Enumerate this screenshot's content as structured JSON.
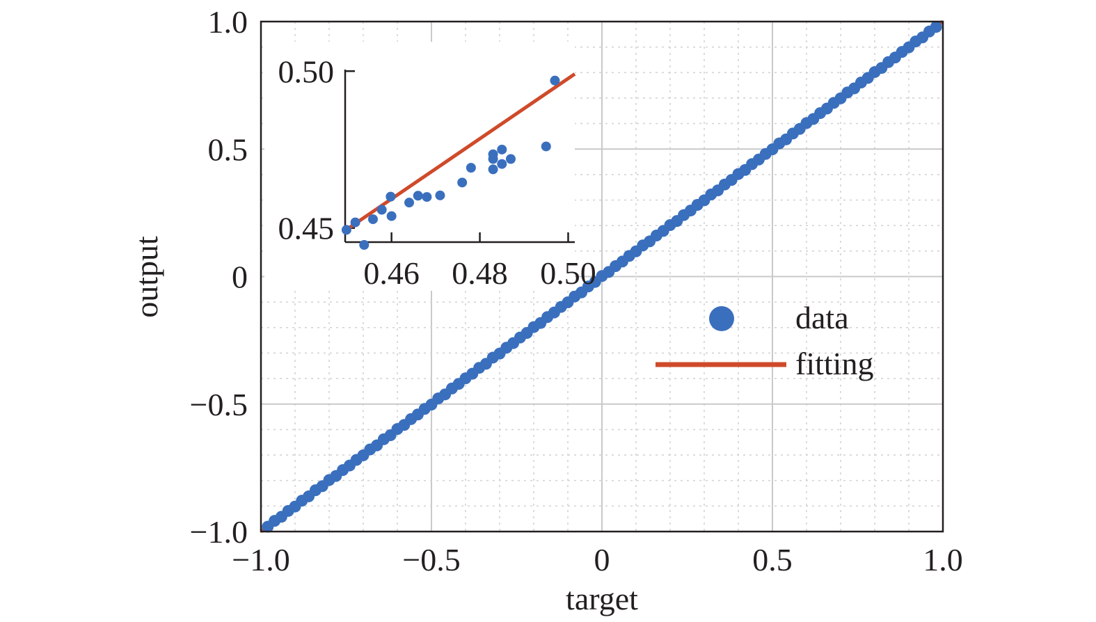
{
  "chart_data": {
    "type": "scatter",
    "xlabel": "target",
    "ylabel": "output",
    "xlim": [
      -1.0,
      1.0
    ],
    "ylim": [
      -1.0,
      1.0
    ],
    "x_ticks": [
      "−1.0",
      "−0.5",
      "0",
      "0.5",
      "1.0"
    ],
    "y_ticks": [
      "−1.0",
      "−0.5",
      "0",
      "0.5",
      "1.0"
    ],
    "grid": "major solid, minor dotted",
    "legend": {
      "placement": "right",
      "entries": [
        {
          "label": "data",
          "marker": "circle",
          "color": "#3a6fbd"
        },
        {
          "label": "fitting",
          "marker": "line",
          "color": "#cf4a2a"
        }
      ]
    },
    "series": [
      {
        "name": "data",
        "kind": "scatter",
        "color": "#3a6fbd",
        "points": [
          [
            -0.98,
            -0.981
          ],
          [
            -0.96,
            -0.958
          ],
          [
            -0.94,
            -0.942
          ],
          [
            -0.92,
            -0.919
          ],
          [
            -0.9,
            -0.902
          ],
          [
            -0.88,
            -0.879
          ],
          [
            -0.86,
            -0.862
          ],
          [
            -0.84,
            -0.838
          ],
          [
            -0.82,
            -0.822
          ],
          [
            -0.8,
            -0.798
          ],
          [
            -0.78,
            -0.782
          ],
          [
            -0.76,
            -0.759
          ],
          [
            -0.74,
            -0.741
          ],
          [
            -0.72,
            -0.719
          ],
          [
            -0.7,
            -0.701
          ],
          [
            -0.68,
            -0.678
          ],
          [
            -0.66,
            -0.662
          ],
          [
            -0.64,
            -0.638
          ],
          [
            -0.62,
            -0.622
          ],
          [
            -0.6,
            -0.598
          ],
          [
            -0.58,
            -0.582
          ],
          [
            -0.56,
            -0.559
          ],
          [
            -0.54,
            -0.541
          ],
          [
            -0.52,
            -0.519
          ],
          [
            -0.5,
            -0.502
          ],
          [
            -0.48,
            -0.478
          ],
          [
            -0.46,
            -0.462
          ],
          [
            -0.44,
            -0.439
          ],
          [
            -0.42,
            -0.421
          ],
          [
            -0.4,
            -0.399
          ],
          [
            -0.38,
            -0.381
          ],
          [
            -0.36,
            -0.358
          ],
          [
            -0.34,
            -0.342
          ],
          [
            -0.32,
            -0.318
          ],
          [
            -0.3,
            -0.302
          ],
          [
            -0.28,
            -0.279
          ],
          [
            -0.26,
            -0.261
          ],
          [
            -0.24,
            -0.239
          ],
          [
            -0.22,
            -0.221
          ],
          [
            -0.2,
            -0.198
          ],
          [
            -0.18,
            -0.182
          ],
          [
            -0.16,
            -0.159
          ],
          [
            -0.14,
            -0.141
          ],
          [
            -0.12,
            -0.119
          ],
          [
            -0.1,
            -0.101
          ],
          [
            -0.08,
            -0.078
          ],
          [
            -0.06,
            -0.062
          ],
          [
            -0.04,
            -0.039
          ],
          [
            -0.02,
            -0.021
          ],
          [
            0.0,
            0.002
          ],
          [
            0.02,
            0.018
          ],
          [
            0.04,
            0.041
          ],
          [
            0.06,
            0.059
          ],
          [
            0.08,
            0.081
          ],
          [
            0.1,
            0.099
          ],
          [
            0.12,
            0.122
          ],
          [
            0.14,
            0.138
          ],
          [
            0.16,
            0.161
          ],
          [
            0.18,
            0.179
          ],
          [
            0.2,
            0.202
          ],
          [
            0.22,
            0.218
          ],
          [
            0.24,
            0.241
          ],
          [
            0.26,
            0.259
          ],
          [
            0.28,
            0.281
          ],
          [
            0.3,
            0.299
          ],
          [
            0.32,
            0.322
          ],
          [
            0.34,
            0.338
          ],
          [
            0.36,
            0.361
          ],
          [
            0.38,
            0.379
          ],
          [
            0.4,
            0.402
          ],
          [
            0.42,
            0.418
          ],
          [
            0.44,
            0.441
          ],
          [
            0.46,
            0.459
          ],
          [
            0.48,
            0.481
          ],
          [
            0.5,
            0.499
          ],
          [
            0.52,
            0.522
          ],
          [
            0.54,
            0.538
          ],
          [
            0.56,
            0.561
          ],
          [
            0.58,
            0.579
          ],
          [
            0.6,
            0.602
          ],
          [
            0.62,
            0.618
          ],
          [
            0.64,
            0.641
          ],
          [
            0.66,
            0.659
          ],
          [
            0.68,
            0.681
          ],
          [
            0.7,
            0.699
          ],
          [
            0.72,
            0.722
          ],
          [
            0.74,
            0.738
          ],
          [
            0.76,
            0.761
          ],
          [
            0.78,
            0.779
          ],
          [
            0.8,
            0.802
          ],
          [
            0.82,
            0.818
          ],
          [
            0.84,
            0.841
          ],
          [
            0.86,
            0.859
          ],
          [
            0.88,
            0.881
          ],
          [
            0.9,
            0.899
          ],
          [
            0.92,
            0.922
          ],
          [
            0.94,
            0.938
          ],
          [
            0.96,
            0.961
          ],
          [
            0.98,
            0.979
          ]
        ]
      },
      {
        "name": "fitting",
        "kind": "line",
        "color": "#cf4a2a",
        "points": [
          [
            -1.0,
            -1.0
          ],
          [
            1.0,
            1.0
          ]
        ]
      }
    ],
    "inset": {
      "xlim": [
        0.4495,
        0.5015
      ],
      "ylim": [
        0.4455,
        0.5005
      ],
      "x_ticks": [
        {
          "value": 0.46,
          "label": "0.46"
        },
        {
          "value": 0.48,
          "label": "0.48"
        },
        {
          "value": 0.5,
          "label": "0.50"
        }
      ],
      "y_ticks": [
        {
          "value": 0.45,
          "label": "0.45"
        },
        {
          "value": 0.5,
          "label": "0.50"
        }
      ],
      "fit_line": [
        [
          0.4495,
          0.4492
        ],
        [
          0.5015,
          0.4991
        ]
      ],
      "points": [
        [
          0.4498,
          0.4494
        ],
        [
          0.4518,
          0.4518
        ],
        [
          0.4538,
          0.4446
        ],
        [
          0.4558,
          0.4528
        ],
        [
          0.4578,
          0.4558
        ],
        [
          0.4598,
          0.46
        ],
        [
          0.46,
          0.4538
        ],
        [
          0.464,
          0.4581
        ],
        [
          0.466,
          0.4603
        ],
        [
          0.468,
          0.4599
        ],
        [
          0.471,
          0.4604
        ],
        [
          0.476,
          0.4645
        ],
        [
          0.478,
          0.4692
        ],
        [
          0.483,
          0.4687
        ],
        [
          0.483,
          0.4735
        ],
        [
          0.483,
          0.472
        ],
        [
          0.485,
          0.4704
        ],
        [
          0.485,
          0.475
        ],
        [
          0.487,
          0.472
        ],
        [
          0.495,
          0.476
        ],
        [
          0.497,
          0.497
        ]
      ]
    }
  }
}
